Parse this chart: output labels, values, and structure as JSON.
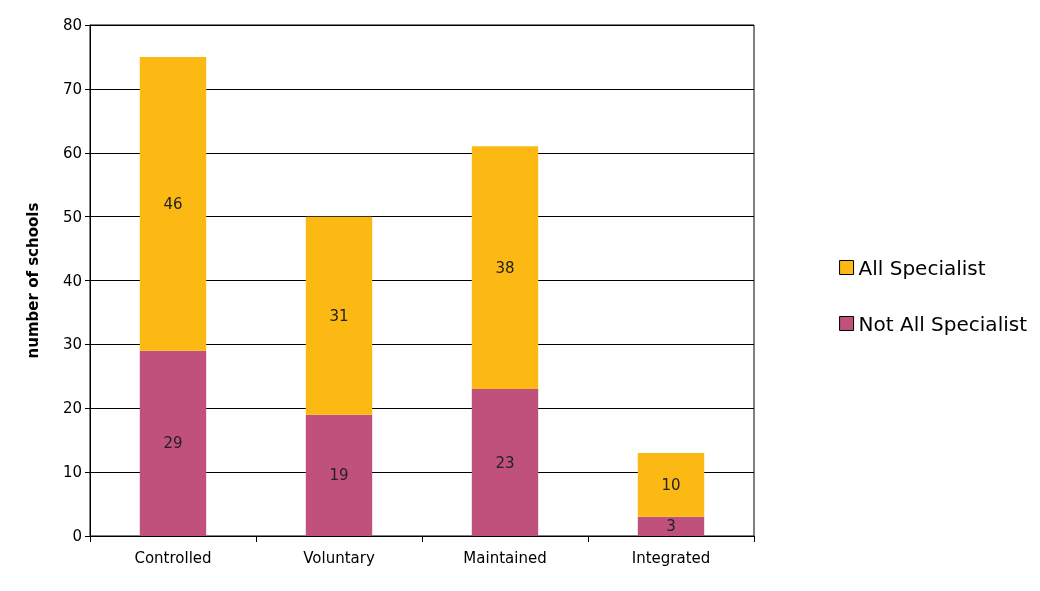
{
  "chart_data": {
    "type": "bar",
    "ylabel": "number of schools",
    "categories": [
      "Controlled",
      "Voluntary",
      "Maintained",
      "Integrated"
    ],
    "series": [
      {
        "name": "Not All Specialist",
        "color": "#c0507c",
        "values": [
          29,
          19,
          23,
          3
        ]
      },
      {
        "name": "All Specialist",
        "color": "#fdb913",
        "values": [
          46,
          31,
          38,
          10
        ]
      }
    ],
    "stacked": true,
    "data_labels": true,
    "ylim": [
      0,
      80
    ],
    "yticks": [
      0,
      10,
      20,
      30,
      40,
      50,
      60,
      70,
      80
    ],
    "grid": "y",
    "legend": "right"
  }
}
